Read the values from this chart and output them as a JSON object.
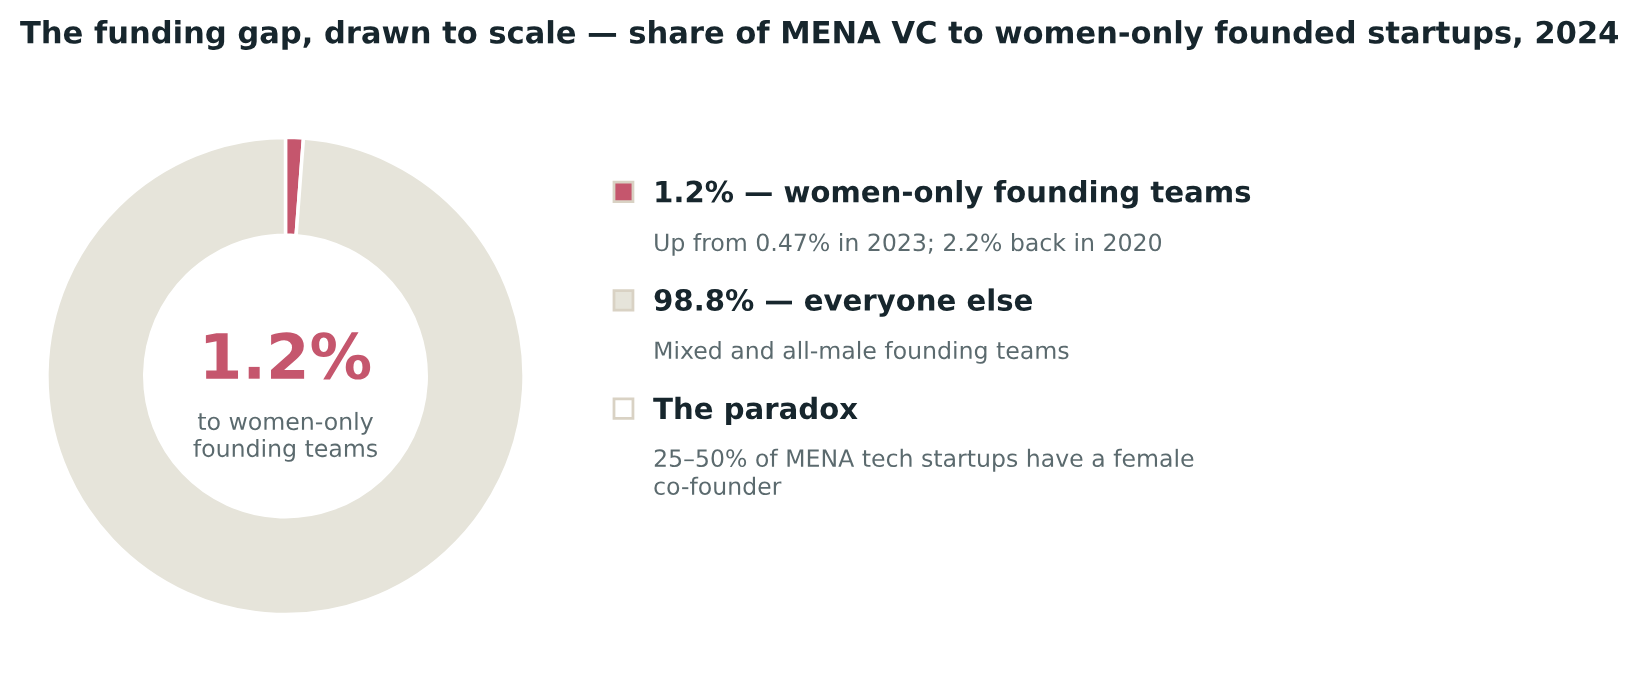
{
  "chart_data": {
    "type": "donut",
    "title": "The funding gap, drawn to scale — share of MENA VC to women-only founded startups, 2024",
    "categories": [
      "1.2% — women-only founding teams",
      "98.8% — everyone else"
    ],
    "values": [
      1.2,
      98.8
    ],
    "colors": [
      "#c5566d",
      "#e6e4da"
    ],
    "legend": "right",
    "annotations": [
      "1.2%",
      "to women-only\nfounding teams",
      "Up from 0.47% in 2023; 2.2% back in 2020",
      "Mixed and all-male founding teams",
      "The paradox",
      "25–50% of MENA tech startups have a female\nco-founder"
    ]
  }
}
